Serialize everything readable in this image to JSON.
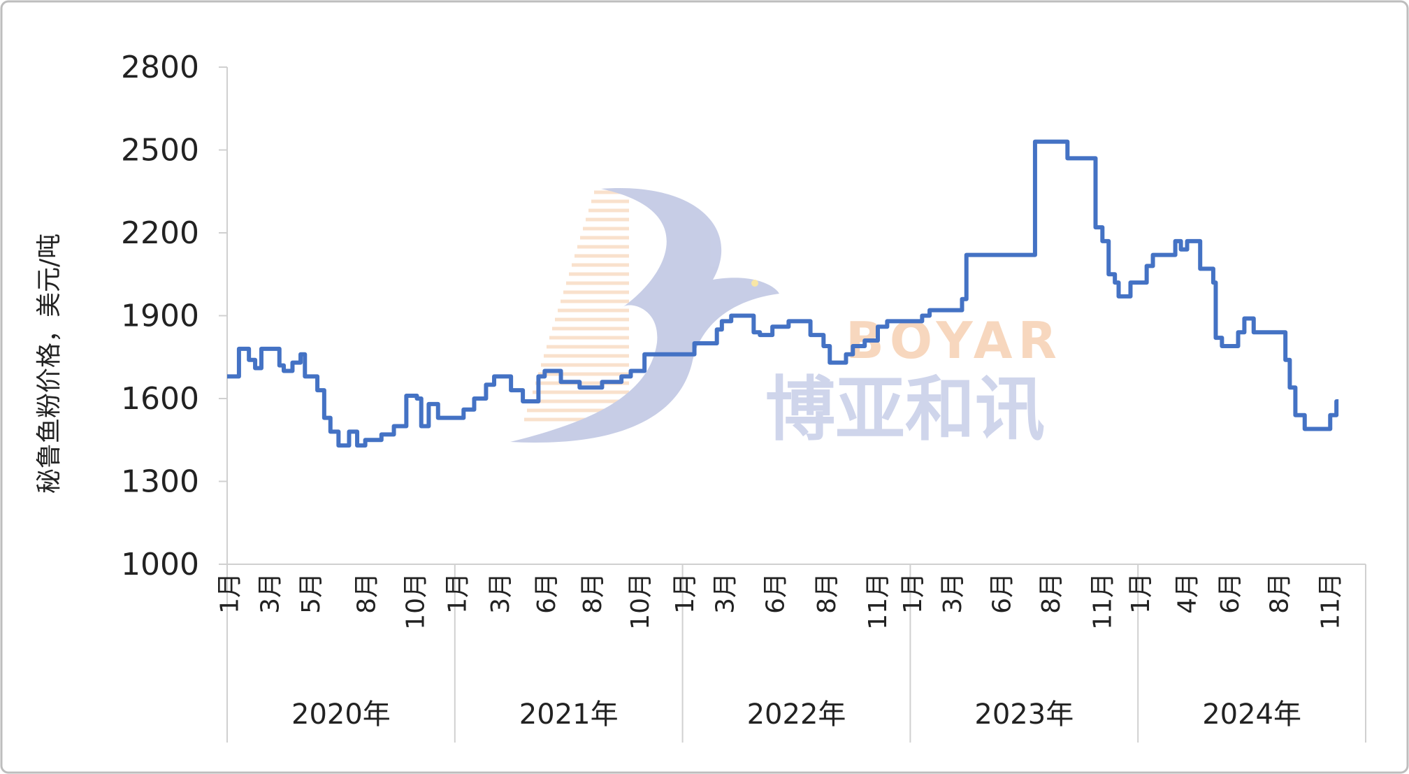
{
  "chart_data": {
    "type": "line",
    "style": "step",
    "title": "",
    "xlabel": "",
    "ylabel": "秘鲁鱼粉价格，美元/吨",
    "ylim": [
      1000,
      2800
    ],
    "yticks": [
      1000,
      1300,
      1600,
      1900,
      2200,
      2500,
      2800
    ],
    "xlim": [
      "2020-01-01",
      "2024-12-31"
    ],
    "grid": false,
    "line_color": "#4472C4",
    "years": [
      "2020年",
      "2021年",
      "2022年",
      "2023年",
      "2024年"
    ],
    "month_ticks": [
      {
        "date": "2020-01-05",
        "label": "1月"
      },
      {
        "date": "2020-03-10",
        "label": "3月"
      },
      {
        "date": "2020-05-15",
        "label": "5月"
      },
      {
        "date": "2020-08-12",
        "label": "8月"
      },
      {
        "date": "2020-10-30",
        "label": "10月"
      },
      {
        "date": "2021-01-05",
        "label": "1月"
      },
      {
        "date": "2021-03-15",
        "label": "3月"
      },
      {
        "date": "2021-05-28",
        "label": "6月"
      },
      {
        "date": "2021-08-10",
        "label": "8月"
      },
      {
        "date": "2021-10-25",
        "label": "10月"
      },
      {
        "date": "2022-01-05",
        "label": "1月"
      },
      {
        "date": "2022-03-10",
        "label": "3月"
      },
      {
        "date": "2022-05-30",
        "label": "6月"
      },
      {
        "date": "2022-08-20",
        "label": "8月"
      },
      {
        "date": "2022-11-10",
        "label": "11月"
      },
      {
        "date": "2023-01-05",
        "label": "1月"
      },
      {
        "date": "2023-03-10",
        "label": "3月"
      },
      {
        "date": "2023-05-28",
        "label": "6月"
      },
      {
        "date": "2023-08-15",
        "label": "8月"
      },
      {
        "date": "2023-11-05",
        "label": "11月"
      },
      {
        "date": "2024-01-05",
        "label": "1月"
      },
      {
        "date": "2024-03-20",
        "label": "4月"
      },
      {
        "date": "2024-05-28",
        "label": "6月"
      },
      {
        "date": "2024-08-15",
        "label": "8月"
      },
      {
        "date": "2024-11-05",
        "label": "11月"
      }
    ],
    "points": [
      [
        "2020-01-01",
        1680
      ],
      [
        "2020-01-20",
        1780
      ],
      [
        "2020-02-05",
        1740
      ],
      [
        "2020-02-15",
        1710
      ],
      [
        "2020-02-25",
        1780
      ],
      [
        "2020-03-25",
        1720
      ],
      [
        "2020-04-01",
        1700
      ],
      [
        "2020-04-15",
        1730
      ],
      [
        "2020-04-28",
        1760
      ],
      [
        "2020-05-05",
        1680
      ],
      [
        "2020-05-25",
        1630
      ],
      [
        "2020-06-05",
        1530
      ],
      [
        "2020-06-15",
        1480
      ],
      [
        "2020-06-28",
        1430
      ],
      [
        "2020-07-15",
        1480
      ],
      [
        "2020-07-28",
        1430
      ],
      [
        "2020-08-10",
        1450
      ],
      [
        "2020-09-05",
        1470
      ],
      [
        "2020-09-25",
        1500
      ],
      [
        "2020-10-15",
        1610
      ],
      [
        "2020-11-01",
        1600
      ],
      [
        "2020-11-08",
        1500
      ],
      [
        "2020-11-20",
        1580
      ],
      [
        "2020-12-05",
        1530
      ],
      [
        "2021-01-15",
        1560
      ],
      [
        "2021-02-01",
        1600
      ],
      [
        "2021-02-20",
        1650
      ],
      [
        "2021-03-05",
        1680
      ],
      [
        "2021-04-01",
        1630
      ],
      [
        "2021-04-20",
        1590
      ],
      [
        "2021-05-15",
        1680
      ],
      [
        "2021-05-25",
        1700
      ],
      [
        "2021-06-20",
        1660
      ],
      [
        "2021-07-20",
        1640
      ],
      [
        "2021-08-25",
        1660
      ],
      [
        "2021-09-25",
        1680
      ],
      [
        "2021-10-10",
        1700
      ],
      [
        "2021-11-01",
        1760
      ],
      [
        "2022-01-20",
        1800
      ],
      [
        "2022-02-25",
        1850
      ],
      [
        "2022-03-05",
        1880
      ],
      [
        "2022-03-20",
        1900
      ],
      [
        "2022-04-25",
        1840
      ],
      [
        "2022-05-05",
        1830
      ],
      [
        "2022-05-25",
        1860
      ],
      [
        "2022-06-20",
        1880
      ],
      [
        "2022-07-25",
        1830
      ],
      [
        "2022-08-15",
        1790
      ],
      [
        "2022-08-25",
        1730
      ],
      [
        "2022-09-20",
        1760
      ],
      [
        "2022-10-01",
        1790
      ],
      [
        "2022-10-20",
        1810
      ],
      [
        "2022-11-10",
        1860
      ],
      [
        "2022-11-25",
        1880
      ],
      [
        "2023-01-20",
        1900
      ],
      [
        "2023-02-01",
        1920
      ],
      [
        "2023-03-25",
        1960
      ],
      [
        "2023-04-01",
        2120
      ],
      [
        "2023-07-20",
        2530
      ],
      [
        "2023-09-10",
        2470
      ],
      [
        "2023-10-25",
        2220
      ],
      [
        "2023-11-05",
        2170
      ],
      [
        "2023-11-15",
        2050
      ],
      [
        "2023-11-25",
        2020
      ],
      [
        "2023-12-01",
        1970
      ],
      [
        "2023-12-20",
        2020
      ],
      [
        "2024-01-15",
        2080
      ],
      [
        "2024-01-25",
        2120
      ],
      [
        "2024-03-01",
        2170
      ],
      [
        "2024-03-10",
        2140
      ],
      [
        "2024-03-20",
        2170
      ],
      [
        "2024-04-10",
        2070
      ],
      [
        "2024-05-01",
        2020
      ],
      [
        "2024-05-05",
        1820
      ],
      [
        "2024-05-15",
        1790
      ],
      [
        "2024-06-10",
        1840
      ],
      [
        "2024-06-20",
        1890
      ],
      [
        "2024-07-05",
        1840
      ],
      [
        "2024-08-25",
        1740
      ],
      [
        "2024-09-01",
        1640
      ],
      [
        "2024-09-10",
        1540
      ],
      [
        "2024-09-25",
        1490
      ],
      [
        "2024-11-05",
        1540
      ],
      [
        "2024-11-15",
        1590
      ]
    ]
  },
  "watermark": {
    "latin": "BOYAR",
    "chinese": "博亚和讯"
  }
}
